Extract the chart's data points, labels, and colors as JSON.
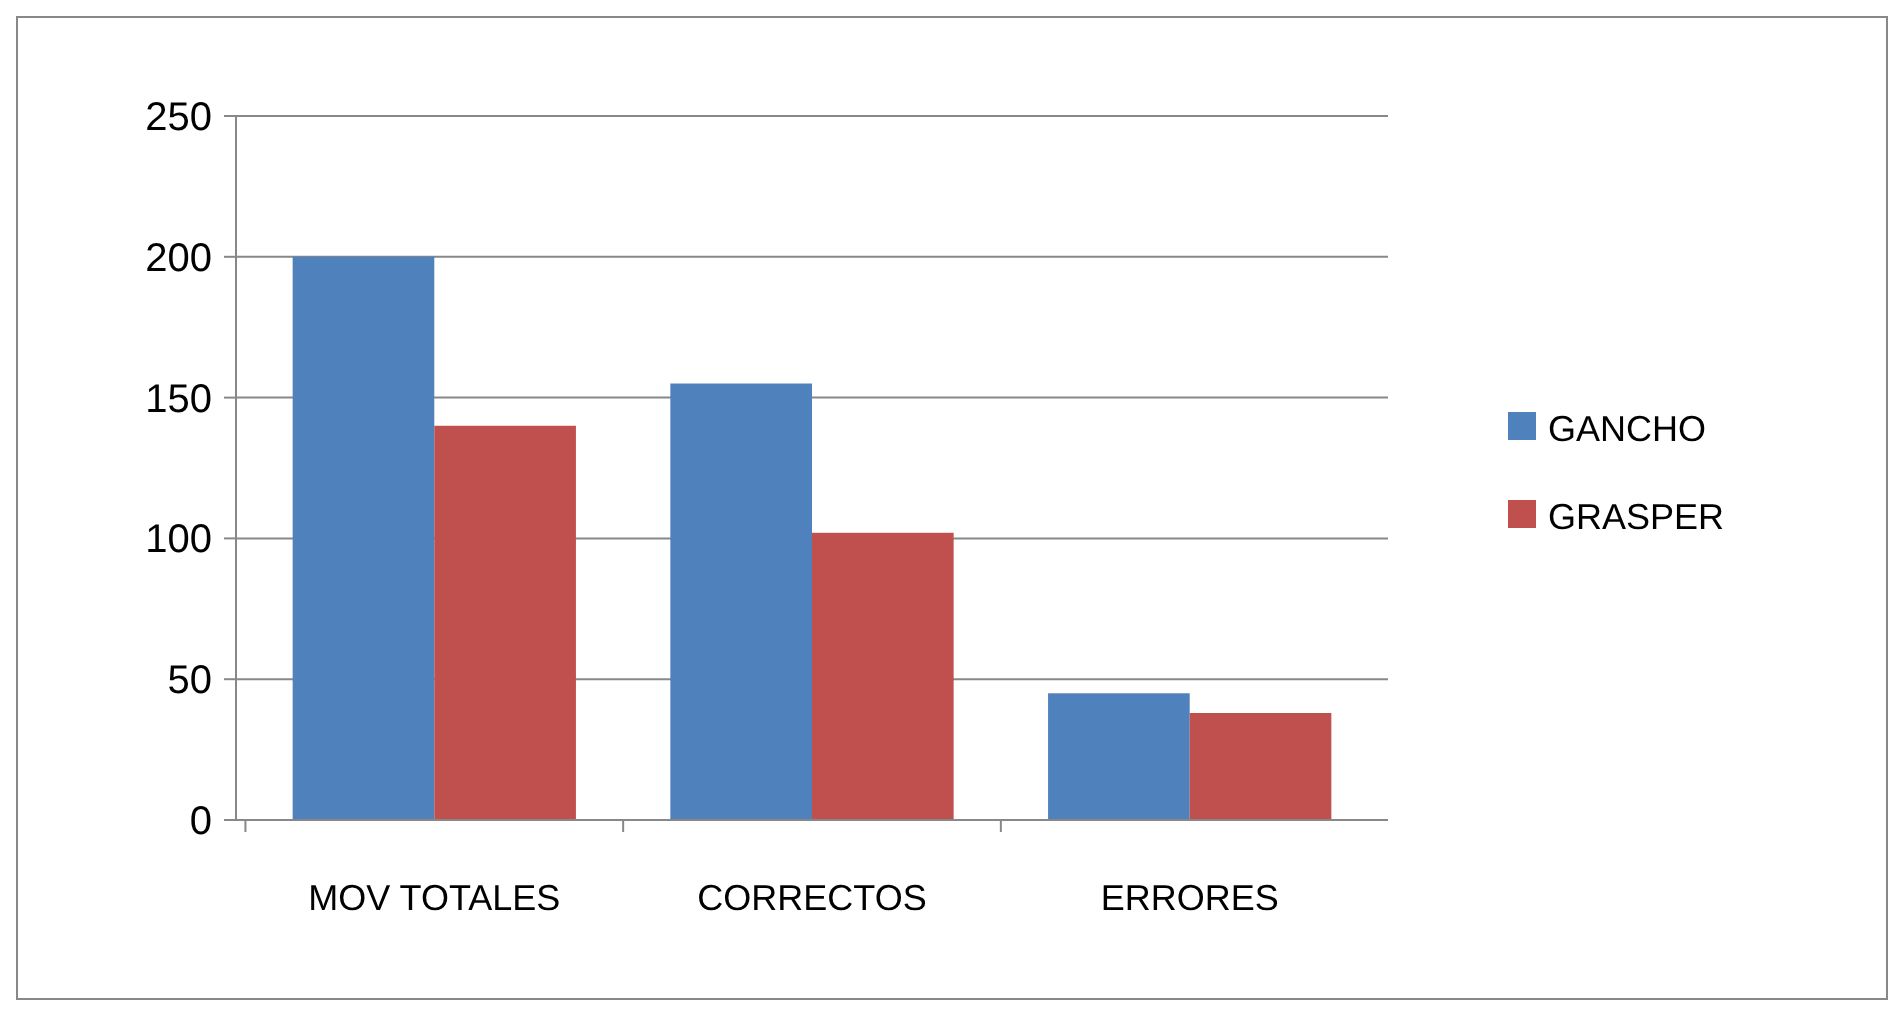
{
  "chart_data": {
    "type": "bar",
    "categories": [
      "MOV TOTALES",
      "CORRECTOS",
      "ERRORES"
    ],
    "series": [
      {
        "name": "GANCHO",
        "color": "#4f81bd",
        "values": [
          200,
          155,
          45
        ]
      },
      {
        "name": "GRASPER",
        "color": "#c0504d",
        "values": [
          140,
          102,
          38
        ]
      }
    ],
    "ylim": [
      0,
      250
    ],
    "yticks": [
      0,
      50,
      100,
      150,
      200,
      250
    ],
    "grid": "y",
    "legend": "right"
  }
}
